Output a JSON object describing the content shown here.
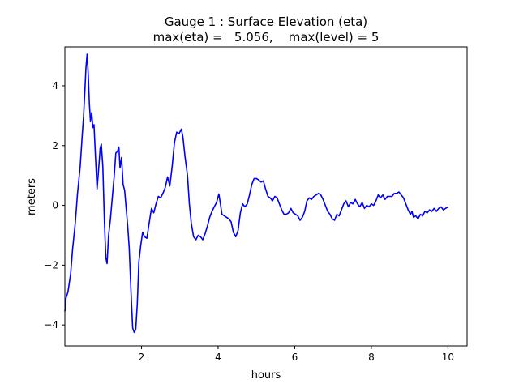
{
  "chart_data": {
    "type": "line",
    "title": "Gauge 1 : Surface Elevation (eta)",
    "subtitle": "max(eta) =   5.056,    max(level) = 5",
    "xlabel": "hours",
    "ylabel": "meters",
    "xlim": [
      0.0,
      10.5
    ],
    "ylim": [
      -4.7,
      5.3
    ],
    "xticks": [
      2,
      4,
      6,
      8,
      10
    ],
    "yticks": [
      -4,
      -2,
      0,
      2,
      4
    ],
    "grid": false,
    "series": [
      {
        "color": "#0000ff",
        "points": [
          [
            0.0,
            -3.55
          ],
          [
            0.03,
            -3.1
          ],
          [
            0.08,
            -2.9
          ],
          [
            0.15,
            -2.3
          ],
          [
            0.2,
            -1.5
          ],
          [
            0.27,
            -0.6
          ],
          [
            0.33,
            0.4
          ],
          [
            0.4,
            1.3
          ],
          [
            0.45,
            2.3
          ],
          [
            0.49,
            3.0
          ],
          [
            0.52,
            3.8
          ],
          [
            0.55,
            4.6
          ],
          [
            0.58,
            5.056
          ],
          [
            0.61,
            4.4
          ],
          [
            0.64,
            3.4
          ],
          [
            0.67,
            2.8
          ],
          [
            0.7,
            3.1
          ],
          [
            0.73,
            2.6
          ],
          [
            0.76,
            2.7
          ],
          [
            0.8,
            1.6
          ],
          [
            0.84,
            0.55
          ],
          [
            0.88,
            1.2
          ],
          [
            0.92,
            1.9
          ],
          [
            0.95,
            2.05
          ],
          [
            0.99,
            1.3
          ],
          [
            1.03,
            -0.5
          ],
          [
            1.07,
            -1.75
          ],
          [
            1.1,
            -1.95
          ],
          [
            1.14,
            -1.0
          ],
          [
            1.19,
            -0.45
          ],
          [
            1.24,
            0.3
          ],
          [
            1.29,
            1.0
          ],
          [
            1.33,
            1.75
          ],
          [
            1.37,
            1.8
          ],
          [
            1.41,
            1.95
          ],
          [
            1.44,
            1.25
          ],
          [
            1.48,
            1.6
          ],
          [
            1.52,
            0.7
          ],
          [
            1.56,
            0.5
          ],
          [
            1.6,
            -0.1
          ],
          [
            1.64,
            -0.7
          ],
          [
            1.68,
            -1.45
          ],
          [
            1.71,
            -2.4
          ],
          [
            1.74,
            -3.3
          ],
          [
            1.77,
            -4.1
          ],
          [
            1.81,
            -4.25
          ],
          [
            1.85,
            -4.15
          ],
          [
            1.89,
            -3.3
          ],
          [
            1.93,
            -1.9
          ],
          [
            1.98,
            -1.35
          ],
          [
            2.03,
            -0.9
          ],
          [
            2.08,
            -1.05
          ],
          [
            2.14,
            -1.1
          ],
          [
            2.2,
            -0.6
          ],
          [
            2.26,
            -0.1
          ],
          [
            2.32,
            -0.25
          ],
          [
            2.38,
            0.05
          ],
          [
            2.44,
            0.3
          ],
          [
            2.5,
            0.25
          ],
          [
            2.56,
            0.4
          ],
          [
            2.62,
            0.6
          ],
          [
            2.68,
            0.95
          ],
          [
            2.74,
            0.65
          ],
          [
            2.8,
            1.3
          ],
          [
            2.86,
            2.1
          ],
          [
            2.92,
            2.45
          ],
          [
            2.98,
            2.4
          ],
          [
            3.04,
            2.55
          ],
          [
            3.08,
            2.3
          ],
          [
            3.14,
            1.6
          ],
          [
            3.2,
            1.0
          ],
          [
            3.25,
            0.05
          ],
          [
            3.3,
            -0.6
          ],
          [
            3.36,
            -1.05
          ],
          [
            3.42,
            -1.15
          ],
          [
            3.48,
            -1.0
          ],
          [
            3.54,
            -1.05
          ],
          [
            3.6,
            -1.15
          ],
          [
            3.66,
            -0.95
          ],
          [
            3.72,
            -0.7
          ],
          [
            3.78,
            -0.4
          ],
          [
            3.84,
            -0.2
          ],
          [
            3.9,
            -0.05
          ],
          [
            3.96,
            0.1
          ],
          [
            4.02,
            0.38
          ],
          [
            4.06,
            0.05
          ],
          [
            4.1,
            -0.3
          ],
          [
            4.16,
            -0.35
          ],
          [
            4.22,
            -0.4
          ],
          [
            4.28,
            -0.45
          ],
          [
            4.34,
            -0.55
          ],
          [
            4.4,
            -0.9
          ],
          [
            4.46,
            -1.05
          ],
          [
            4.52,
            -0.85
          ],
          [
            4.58,
            -0.25
          ],
          [
            4.64,
            0.05
          ],
          [
            4.7,
            -0.05
          ],
          [
            4.76,
            0.05
          ],
          [
            4.82,
            0.35
          ],
          [
            4.88,
            0.7
          ],
          [
            4.94,
            0.9
          ],
          [
            5.0,
            0.9
          ],
          [
            5.06,
            0.85
          ],
          [
            5.12,
            0.78
          ],
          [
            5.18,
            0.82
          ],
          [
            5.24,
            0.55
          ],
          [
            5.3,
            0.3
          ],
          [
            5.36,
            0.25
          ],
          [
            5.42,
            0.15
          ],
          [
            5.48,
            0.3
          ],
          [
            5.54,
            0.25
          ],
          [
            5.6,
            0.05
          ],
          [
            5.66,
            -0.15
          ],
          [
            5.72,
            -0.3
          ],
          [
            5.78,
            -0.3
          ],
          [
            5.84,
            -0.25
          ],
          [
            5.9,
            -0.1
          ],
          [
            5.96,
            -0.25
          ],
          [
            6.02,
            -0.3
          ],
          [
            6.08,
            -0.35
          ],
          [
            6.14,
            -0.5
          ],
          [
            6.2,
            -0.4
          ],
          [
            6.26,
            -0.2
          ],
          [
            6.32,
            0.15
          ],
          [
            6.38,
            0.25
          ],
          [
            6.44,
            0.2
          ],
          [
            6.5,
            0.3
          ],
          [
            6.56,
            0.35
          ],
          [
            6.62,
            0.4
          ],
          [
            6.68,
            0.35
          ],
          [
            6.74,
            0.2
          ],
          [
            6.8,
            0.0
          ],
          [
            6.86,
            -0.2
          ],
          [
            6.92,
            -0.3
          ],
          [
            6.98,
            -0.45
          ],
          [
            7.04,
            -0.5
          ],
          [
            7.1,
            -0.3
          ],
          [
            7.16,
            -0.35
          ],
          [
            7.22,
            -0.15
          ],
          [
            7.28,
            0.05
          ],
          [
            7.34,
            0.15
          ],
          [
            7.4,
            -0.05
          ],
          [
            7.46,
            0.1
          ],
          [
            7.52,
            0.05
          ],
          [
            7.58,
            0.2
          ],
          [
            7.64,
            0.05
          ],
          [
            7.7,
            -0.05
          ],
          [
            7.76,
            0.1
          ],
          [
            7.82,
            -0.1
          ],
          [
            7.88,
            0.0
          ],
          [
            7.94,
            -0.05
          ],
          [
            8.0,
            0.05
          ],
          [
            8.06,
            0.0
          ],
          [
            8.12,
            0.15
          ],
          [
            8.18,
            0.35
          ],
          [
            8.24,
            0.25
          ],
          [
            8.3,
            0.35
          ],
          [
            8.36,
            0.2
          ],
          [
            8.42,
            0.3
          ],
          [
            8.48,
            0.3
          ],
          [
            8.54,
            0.3
          ],
          [
            8.6,
            0.4
          ],
          [
            8.66,
            0.4
          ],
          [
            8.72,
            0.45
          ],
          [
            8.78,
            0.35
          ],
          [
            8.84,
            0.25
          ],
          [
            8.9,
            0.05
          ],
          [
            8.96,
            -0.15
          ],
          [
            9.02,
            -0.3
          ],
          [
            9.06,
            -0.2
          ],
          [
            9.1,
            -0.4
          ],
          [
            9.16,
            -0.35
          ],
          [
            9.22,
            -0.45
          ],
          [
            9.28,
            -0.3
          ],
          [
            9.34,
            -0.35
          ],
          [
            9.4,
            -0.2
          ],
          [
            9.46,
            -0.25
          ],
          [
            9.52,
            -0.15
          ],
          [
            9.58,
            -0.2
          ],
          [
            9.64,
            -0.1
          ],
          [
            9.7,
            -0.2
          ],
          [
            9.76,
            -0.1
          ],
          [
            9.82,
            -0.05
          ],
          [
            9.88,
            -0.15
          ],
          [
            9.94,
            -0.1
          ],
          [
            10.0,
            -0.05
          ]
        ]
      }
    ]
  }
}
